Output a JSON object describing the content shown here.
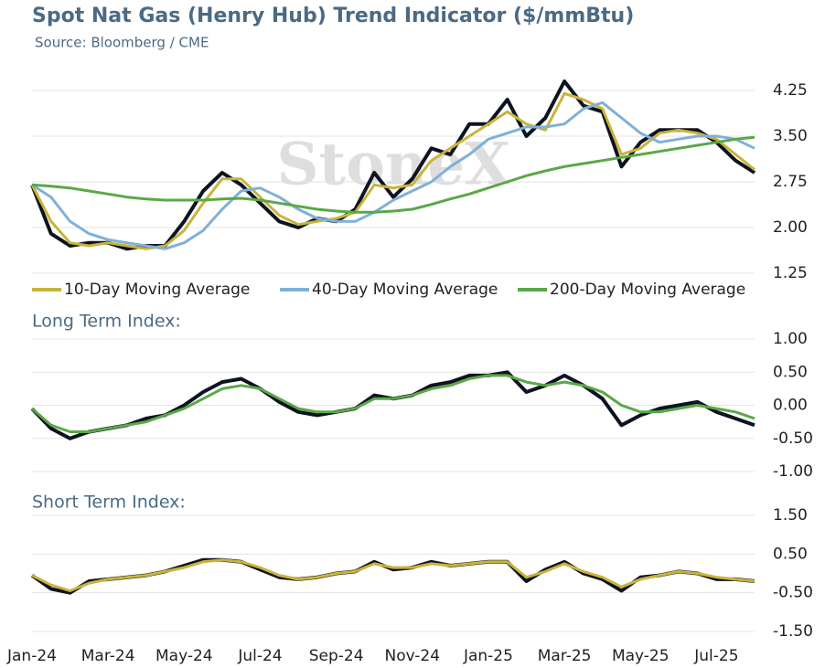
{
  "chart_data": [
    {
      "type": "line",
      "title": "Spot Nat Gas (Henry Hub) Trend Indicator ($/mmBtu)",
      "subtitle": "Source: Bloomberg / CME",
      "watermark": "StoneX",
      "ylim": [
        1.25,
        4.25
      ],
      "yticks": [
        4.25,
        {
          "value": 3.5,
          "label": "3.50"
        },
        2.75,
        {
          "value": 2,
          "label": "2.00"
        },
        1.25
      ],
      "grid": true,
      "series": [
        {
          "color": "#0d1321",
          "values": [
            2.7,
            1.9,
            1.7,
            1.75,
            1.75,
            1.65,
            1.7,
            1.7,
            2.1,
            2.6,
            2.9,
            2.7,
            2.4,
            2.1,
            2.0,
            2.15,
            2.1,
            2.3,
            2.9,
            2.5,
            2.8,
            3.3,
            3.2,
            3.7,
            3.7,
            4.1,
            3.5,
            3.8,
            4.4,
            4.0,
            3.9,
            3.0,
            3.4,
            3.6,
            3.6,
            3.6,
            3.4,
            3.1,
            2.9
          ]
        },
        {
          "name": "10-Day Moving Average",
          "color": "#c8b43a",
          "values": [
            2.7,
            2.1,
            1.75,
            1.7,
            1.75,
            1.7,
            1.65,
            1.7,
            1.95,
            2.4,
            2.8,
            2.8,
            2.5,
            2.2,
            2.05,
            2.1,
            2.15,
            2.25,
            2.7,
            2.65,
            2.7,
            3.1,
            3.3,
            3.5,
            3.7,
            3.9,
            3.7,
            3.6,
            4.2,
            4.1,
            3.95,
            3.2,
            3.3,
            3.55,
            3.6,
            3.55,
            3.45,
            3.2,
            2.95
          ]
        },
        {
          "name": "40-Day Moving Average",
          "color": "#7fb0d8",
          "values": [
            2.7,
            2.5,
            2.1,
            1.9,
            1.8,
            1.75,
            1.7,
            1.65,
            1.75,
            1.95,
            2.3,
            2.6,
            2.65,
            2.5,
            2.3,
            2.15,
            2.1,
            2.1,
            2.25,
            2.45,
            2.6,
            2.75,
            3.0,
            3.2,
            3.45,
            3.55,
            3.65,
            3.65,
            3.7,
            3.95,
            4.05,
            3.8,
            3.55,
            3.4,
            3.45,
            3.5,
            3.5,
            3.45,
            3.3
          ]
        },
        {
          "name": "200-Day Moving Average",
          "color": "#5aa846",
          "values": [
            2.7,
            2.68,
            2.65,
            2.6,
            2.55,
            2.5,
            2.47,
            2.45,
            2.45,
            2.45,
            2.47,
            2.48,
            2.45,
            2.4,
            2.35,
            2.3,
            2.27,
            2.25,
            2.25,
            2.27,
            2.3,
            2.38,
            2.47,
            2.55,
            2.65,
            2.75,
            2.85,
            2.93,
            3.0,
            3.05,
            3.1,
            3.15,
            3.2,
            3.25,
            3.3,
            3.35,
            3.4,
            3.45,
            3.48
          ]
        }
      ]
    },
    {
      "type": "line",
      "title": "Long Term Index:",
      "ylim": [
        -1,
        1
      ],
      "yticks": [
        {
          "value": 1,
          "label": "1.00"
        },
        {
          "value": 0.5,
          "label": "0.50"
        },
        {
          "value": 0,
          "label": "0.00"
        },
        {
          "value": -0.5,
          "label": "-0.50"
        },
        {
          "value": -1,
          "label": "-1.00"
        }
      ],
      "grid": true,
      "series": [
        {
          "color": "#0d1321",
          "values": [
            -0.05,
            -0.35,
            -0.5,
            -0.4,
            -0.35,
            -0.3,
            -0.2,
            -0.15,
            0.0,
            0.2,
            0.35,
            0.4,
            0.25,
            0.05,
            -0.1,
            -0.15,
            -0.1,
            -0.05,
            0.15,
            0.1,
            0.15,
            0.3,
            0.35,
            0.45,
            0.45,
            0.5,
            0.2,
            0.3,
            0.45,
            0.3,
            0.1,
            -0.3,
            -0.15,
            -0.05,
            0.0,
            0.05,
            -0.1,
            -0.2,
            -0.3
          ]
        },
        {
          "color": "#5aa846",
          "values": [
            -0.05,
            -0.3,
            -0.4,
            -0.4,
            -0.35,
            -0.3,
            -0.25,
            -0.15,
            -0.05,
            0.1,
            0.25,
            0.3,
            0.25,
            0.1,
            -0.05,
            -0.1,
            -0.1,
            -0.05,
            0.1,
            0.1,
            0.15,
            0.25,
            0.3,
            0.4,
            0.45,
            0.45,
            0.35,
            0.3,
            0.35,
            0.3,
            0.2,
            0.0,
            -0.1,
            -0.1,
            -0.05,
            0.0,
            -0.05,
            -0.1,
            -0.2
          ]
        }
      ]
    },
    {
      "type": "line",
      "title": "Short Term Index:",
      "ylim": [
        -1.5,
        1.5
      ],
      "yticks": [
        {
          "value": 1.5,
          "label": "1.50"
        },
        {
          "value": 0.5,
          "label": "0.50"
        },
        {
          "value": -0.5,
          "label": "-0.50"
        },
        {
          "value": -1.5,
          "label": "-1.50"
        }
      ],
      "grid": true,
      "categories": [
        "Jan-24",
        null,
        null,
        null,
        "Mar-24",
        null,
        null,
        null,
        "May-24",
        null,
        null,
        null,
        "Jul-24",
        null,
        null,
        null,
        "Sep-24",
        null,
        null,
        null,
        "Nov-24",
        null,
        null,
        null,
        "Jan-25",
        null,
        null,
        null,
        "Mar-25",
        null,
        null,
        null,
        "May-25",
        null,
        null,
        null,
        "Jul-25",
        null,
        null
      ],
      "series": [
        {
          "color": "#0d1321",
          "values": [
            -0.05,
            -0.4,
            -0.5,
            -0.2,
            -0.15,
            -0.1,
            -0.05,
            0.05,
            0.2,
            0.35,
            0.35,
            0.3,
            0.1,
            -0.1,
            -0.15,
            -0.1,
            0.0,
            0.05,
            0.3,
            0.1,
            0.15,
            0.3,
            0.2,
            0.25,
            0.3,
            0.3,
            -0.2,
            0.1,
            0.3,
            0.0,
            -0.15,
            -0.45,
            -0.1,
            -0.05,
            0.05,
            0.0,
            -0.15,
            -0.15,
            -0.2
          ]
        },
        {
          "color": "#c8b43a",
          "values": [
            -0.05,
            -0.3,
            -0.45,
            -0.25,
            -0.15,
            -0.1,
            -0.05,
            0.05,
            0.15,
            0.3,
            0.35,
            0.3,
            0.15,
            -0.05,
            -0.15,
            -0.1,
            0.0,
            0.05,
            0.25,
            0.15,
            0.15,
            0.25,
            0.2,
            0.25,
            0.3,
            0.3,
            -0.1,
            0.05,
            0.25,
            0.05,
            -0.1,
            -0.35,
            -0.15,
            -0.05,
            0.05,
            0.0,
            -0.1,
            -0.15,
            -0.2
          ]
        }
      ]
    }
  ]
}
